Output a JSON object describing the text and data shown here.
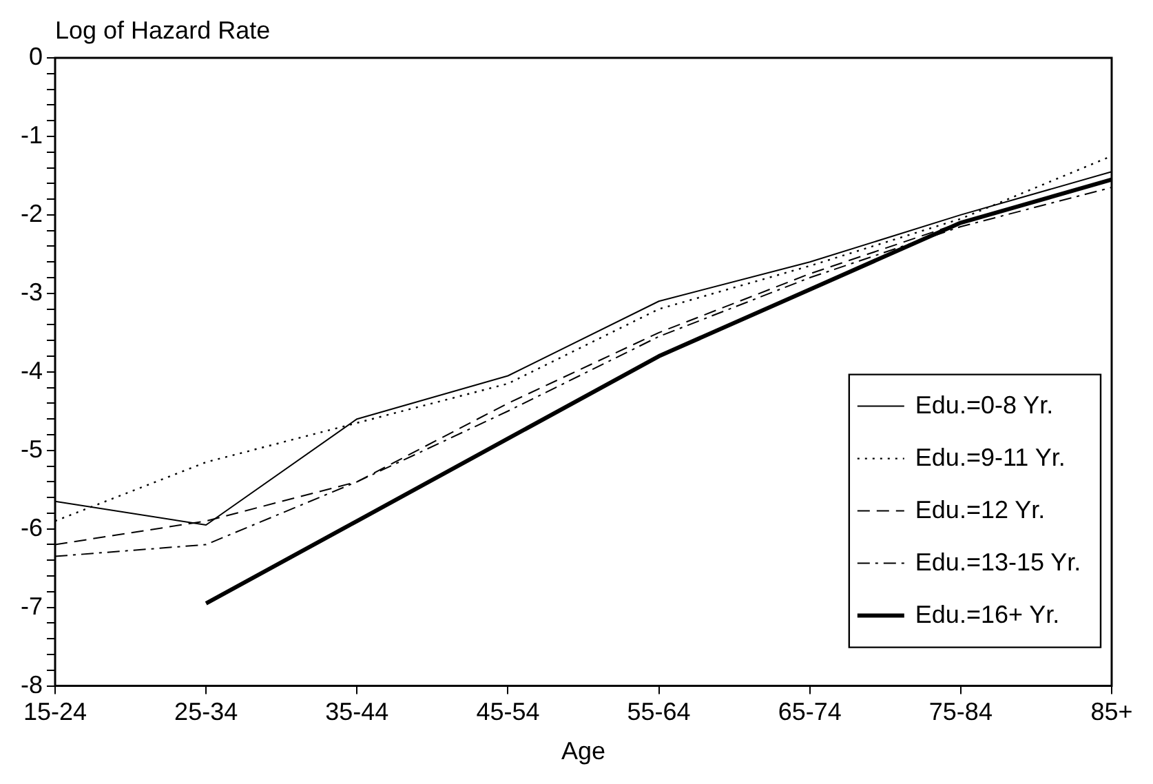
{
  "chart_data": {
    "type": "line",
    "ylabel": "Log of Hazard Rate",
    "xlabel": "Age",
    "categories": [
      "15-24",
      "25-34",
      "35-44",
      "45-54",
      "55-64",
      "65-74",
      "75-84",
      "85+"
    ],
    "series": [
      {
        "name": "Edu.=0-8 Yr.",
        "color": "#000000",
        "line_style": "solid",
        "values": [
          -5.65,
          -5.95,
          -4.6,
          -4.05,
          -3.1,
          -2.6,
          -2.0,
          -1.45
        ]
      },
      {
        "name": "Edu.=9-11 Yr.",
        "color": "#000000",
        "line_style": "dotted",
        "values": [
          -5.9,
          -5.15,
          -4.65,
          -4.15,
          -3.2,
          -2.65,
          -2.05,
          -1.25
        ]
      },
      {
        "name": "Edu.=12 Yr.",
        "color": "#000000",
        "line_style": "dashed",
        "values": [
          -6.2,
          -5.9,
          -5.4,
          -4.4,
          -3.5,
          -2.75,
          -2.1,
          -1.55
        ]
      },
      {
        "name": "Edu.=13-15 Yr.",
        "color": "#000000",
        "line_style": "dashdot",
        "values": [
          -6.35,
          -6.2,
          -5.4,
          -4.5,
          -3.55,
          -2.8,
          -2.15,
          -1.65
        ]
      },
      {
        "name": "Edu.=16+ Yr.",
        "color": "#000000",
        "line_style": "solid",
        "values": [
          null,
          -6.95,
          -5.9,
          -4.85,
          -3.8,
          -2.95,
          -2.1,
          -1.55
        ]
      }
    ],
    "ylim": [
      -8,
      0
    ],
    "yticks": [
      -8,
      {
        "value": -7.8,
        "label": null
      },
      {
        "value": -7.6,
        "label": null
      },
      {
        "value": -7.4,
        "label": null
      },
      {
        "value": -7.2,
        "label": null
      },
      -7,
      {
        "value": -6.8,
        "label": null
      },
      {
        "value": -6.6,
        "label": null
      },
      {
        "value": -6.4,
        "label": null
      },
      {
        "value": -6.2,
        "label": null
      },
      -6,
      {
        "value": -5.8,
        "label": null
      },
      {
        "value": -5.6,
        "label": null
      },
      {
        "value": -5.4,
        "label": null
      },
      {
        "value": -5.2,
        "label": null
      },
      -5,
      {
        "value": -4.8,
        "label": null
      },
      {
        "value": -4.6,
        "label": null
      },
      {
        "value": -4.4,
        "label": null
      },
      {
        "value": -4.2,
        "label": null
      },
      -4,
      {
        "value": -3.8,
        "label": null
      },
      {
        "value": -3.6,
        "label": null
      },
      {
        "value": -3.4,
        "label": null
      },
      {
        "value": -3.2,
        "label": null
      },
      -3,
      {
        "value": -2.8,
        "label": null
      },
      {
        "value": -2.6,
        "label": null
      },
      {
        "value": -2.4,
        "label": null
      },
      {
        "value": -2.2,
        "label": null
      },
      -2,
      {
        "value": -1.8,
        "label": null
      },
      {
        "value": -1.6,
        "label": null
      },
      {
        "value": -1.4,
        "label": null
      },
      {
        "value": -1.2,
        "label": null
      },
      -1,
      {
        "value": -0.8,
        "label": null
      },
      {
        "value": -0.6,
        "label": null
      },
      {
        "value": -0.4,
        "label": null
      },
      {
        "value": -0.2,
        "label": null
      },
      0
    ],
    "grid": false,
    "legend": "bottom right",
    "marker": "none"
  }
}
